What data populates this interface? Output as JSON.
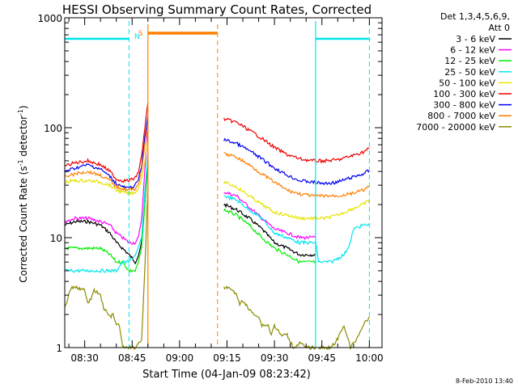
{
  "chart_data": {
    "type": "line",
    "title": "HESSI Observing Summary Count Rates, Corrected",
    "xlabel": "Start Time (04-Jan-09 08:23:42)",
    "ylabel_prefix": "Corrected Count Rate (s",
    "ylabel_sup1": "-1",
    "ylabel_mid": " detector",
    "ylabel_sup2": "-1",
    "ylabel_suffix": ")",
    "y_scale": "log",
    "ylim": [
      1,
      1000
    ],
    "xlim": [
      "08:23:42",
      "10:04:00"
    ],
    "x_ticks": [
      "08:30",
      "08:45",
      "09:00",
      "09:15",
      "09:30",
      "09:45",
      "10:00"
    ],
    "y_ticks": [
      "1",
      "10",
      "100",
      "1000"
    ],
    "legend_header": [
      "Det 1,3,4,5,6,9,",
      "Att 0"
    ],
    "legend_position": "right",
    "date_stamp": "8-Feb-2010 13:40",
    "flags": [
      {
        "label": "N",
        "color": "#00e5ee"
      },
      {
        "label": "S",
        "color": "#ff7f00"
      }
    ],
    "series": [
      {
        "name": "3 - 6 keV",
        "color": "#000000",
        "segments": [
          {
            "x": [
              "08:23:42",
              "08:27",
              "08:31",
              "08:35",
              "08:38",
              "08:40",
              "08:42",
              "08:44",
              "08:46",
              "08:47",
              "08:48",
              "08:49",
              "08:50"
            ],
            "y": [
              13,
              14,
              14,
              13,
              11,
              9,
              8,
              7,
              6,
              7,
              9,
              20,
              50
            ]
          },
          {
            "x": [
              "09:14",
              "09:18",
              "09:22",
              "09:26",
              "09:30",
              "09:34",
              "09:38",
              "09:43"
            ],
            "y": [
              20,
              18,
              15,
              12,
              9,
              8,
              7,
              7
            ]
          }
        ]
      },
      {
        "name": "6 - 12 keV",
        "color": "#ff00ff",
        "segments": [
          {
            "x": [
              "08:23:42",
              "08:27",
              "08:31",
              "08:35",
              "08:38",
              "08:40",
              "08:42",
              "08:44",
              "08:46",
              "08:47",
              "08:48",
              "08:49",
              "08:50"
            ],
            "y": [
              14,
              15,
              15,
              14,
              13,
              11,
              10,
              9,
              9,
              10,
              15,
              40,
              100
            ]
          },
          {
            "x": [
              "09:14",
              "09:18",
              "09:22",
              "09:26",
              "09:30",
              "09:34",
              "09:38",
              "09:43"
            ],
            "y": [
              26,
              24,
              19,
              15,
              12,
              11,
              10,
              10
            ]
          }
        ]
      },
      {
        "name": "12 - 25 keV",
        "color": "#00ee00",
        "segments": [
          {
            "x": [
              "08:23:42",
              "08:27",
              "08:31",
              "08:35",
              "08:38",
              "08:40",
              "08:42",
              "08:44",
              "08:46",
              "08:47",
              "08:48",
              "08:49",
              "08:50"
            ],
            "y": [
              8,
              8,
              8,
              8,
              7,
              6,
              6,
              5,
              5,
              6,
              8,
              20,
              55
            ]
          },
          {
            "x": [
              "09:14",
              "09:18",
              "09:22",
              "09:26",
              "09:30",
              "09:34",
              "09:38",
              "09:43"
            ],
            "y": [
              18,
              16,
              13,
              10,
              8,
              7,
              6,
              6
            ]
          }
        ]
      },
      {
        "name": "25 - 50 keV",
        "color": "#00e5ee",
        "segments": [
          {
            "x": [
              "08:23:42",
              "08:27",
              "08:31",
              "08:35",
              "08:38",
              "08:40",
              "08:42",
              "08:44",
              "08:46",
              "08:47",
              "08:48",
              "08:49",
              "08:50"
            ],
            "y": [
              5,
              5,
              5,
              5,
              5,
              5,
              6,
              6,
              7,
              8,
              10,
              25,
              60
            ]
          },
          {
            "x": [
              "09:14",
              "09:18",
              "09:22",
              "09:26",
              "09:30",
              "09:34",
              "09:38",
              "09:43",
              "09:44",
              "09:48",
              "09:52",
              "09:54",
              "09:55",
              "09:58",
              "10:00"
            ],
            "y": [
              24,
              22,
              18,
              15,
              11,
              10,
              9,
              9,
              6,
              6,
              7,
              9,
              12,
              13,
              13
            ]
          }
        ]
      },
      {
        "name": "50 - 100 keV",
        "color": "#e5e500",
        "segments": [
          {
            "x": [
              "08:23:42",
              "08:27",
              "08:31",
              "08:35",
              "08:38",
              "08:40",
              "08:42",
              "08:44",
              "08:46",
              "08:47",
              "08:48",
              "08:49",
              "08:50"
            ],
            "y": [
              32,
              33,
              33,
              32,
              30,
              27,
              26,
              25,
              26,
              28,
              35,
              50,
              80
            ]
          },
          {
            "x": [
              "09:14",
              "09:18",
              "09:22",
              "09:26",
              "09:30",
              "09:34",
              "09:38",
              "09:42",
              "09:46",
              "09:50",
              "09:54",
              "09:58",
              "10:00"
            ],
            "y": [
              32,
              29,
              24,
              20,
              17,
              16,
              15,
              15,
              15,
              16,
              18,
              20,
              22
            ]
          }
        ]
      },
      {
        "name": "100 - 300 keV",
        "color": "#ee0000",
        "segments": [
          {
            "x": [
              "08:23:42",
              "08:27",
              "08:31",
              "08:35",
              "08:38",
              "08:40",
              "08:42",
              "08:44",
              "08:46",
              "08:47",
              "08:48",
              "08:49",
              "08:50"
            ],
            "y": [
              45,
              48,
              50,
              46,
              40,
              34,
              33,
              33,
              35,
              40,
              55,
              100,
              170
            ]
          },
          {
            "x": [
              "09:14",
              "09:18",
              "09:22",
              "09:26",
              "09:30",
              "09:34",
              "09:38",
              "09:42",
              "09:46",
              "09:50",
              "09:54",
              "09:58",
              "10:00"
            ],
            "y": [
              120,
              112,
              95,
              80,
              66,
              57,
              52,
              50,
              50,
              51,
              55,
              60,
              65
            ]
          }
        ]
      },
      {
        "name": "300 - 800 keV",
        "color": "#0000ee",
        "segments": [
          {
            "x": [
              "08:23:42",
              "08:27",
              "08:31",
              "08:35",
              "08:38",
              "08:40",
              "08:42",
              "08:44",
              "08:46",
              "08:47",
              "08:48",
              "08:49",
              "08:50"
            ],
            "y": [
              40,
              43,
              46,
              42,
              36,
              31,
              29,
              28,
              30,
              34,
              45,
              80,
              130
            ]
          },
          {
            "x": [
              "09:14",
              "09:18",
              "09:22",
              "09:26",
              "09:30",
              "09:34",
              "09:38",
              "09:42",
              "09:46",
              "09:50",
              "09:54",
              "09:58",
              "10:00"
            ],
            "y": [
              78,
              72,
              62,
              52,
              43,
              37,
              33,
              32,
              31,
              32,
              35,
              38,
              41
            ]
          }
        ]
      },
      {
        "name": "800 - 7000 keV",
        "color": "#ff7f00",
        "segments": [
          {
            "x": [
              "08:23:42",
              "08:27",
              "08:31",
              "08:35",
              "08:38",
              "08:40",
              "08:42",
              "08:44",
              "08:46",
              "08:47",
              "08:48",
              "08:49",
              "08:50"
            ],
            "y": [
              36,
              38,
              40,
              37,
              33,
              29,
              28,
              27,
              28,
              31,
              40,
              70,
              110
            ]
          },
          {
            "x": [
              "09:14",
              "09:18",
              "09:22",
              "09:26",
              "09:30",
              "09:34",
              "09:38",
              "09:42",
              "09:46",
              "09:50",
              "09:54",
              "09:58",
              "10:00"
            ],
            "y": [
              58,
              54,
              46,
              38,
              32,
              27,
              25,
              24,
              24,
              24,
              25,
              27,
              29
            ]
          }
        ]
      },
      {
        "name": "7000 - 20000 keV",
        "color": "#8b8b00",
        "segments": [
          {
            "x": [
              "08:23:42",
              "08:25",
              "08:26",
              "08:28",
              "08:30",
              "08:31",
              "08:32",
              "08:33",
              "08:35",
              "08:36",
              "08:38",
              "08:39",
              "08:40",
              "08:41",
              "08:42",
              "08:44",
              "08:46",
              "08:48",
              "08:49",
              "08:50"
            ],
            "y": [
              2.3,
              3,
              3.5,
              3.5,
              3.3,
              2.5,
              2.8,
              3.3,
              3.0,
              2.3,
              1.9,
              2.0,
              1.6,
              1.6,
              1.0,
              1.0,
              1.0,
              1.2,
              5,
              30
            ]
          },
          {
            "x": [
              "09:14",
              "09:16",
              "09:18",
              "09:19",
              "09:20",
              "09:22",
              "09:24",
              "09:25",
              "09:26",
              "09:28",
              "09:29",
              "09:30",
              "09:32",
              "09:34",
              "09:36",
              "09:38",
              "09:40",
              "09:43"
            ],
            "y": [
              3.5,
              3.5,
              3.0,
              2.5,
              2.7,
              2.2,
              2.0,
              1.9,
              1.6,
              1.6,
              1.3,
              1.6,
              1.3,
              1.3,
              1.0,
              1.1,
              1.0,
              1.0
            ]
          },
          {
            "x": [
              "09:44",
              "09:46",
              "09:48",
              "09:50",
              "09:52",
              "09:54",
              "09:56",
              "09:58",
              "10:00"
            ],
            "y": [
              1.0,
              1.0,
              1.0,
              1.2,
              1.6,
              1.0,
              1.2,
              1.6,
              1.9
            ]
          }
        ]
      }
    ]
  }
}
